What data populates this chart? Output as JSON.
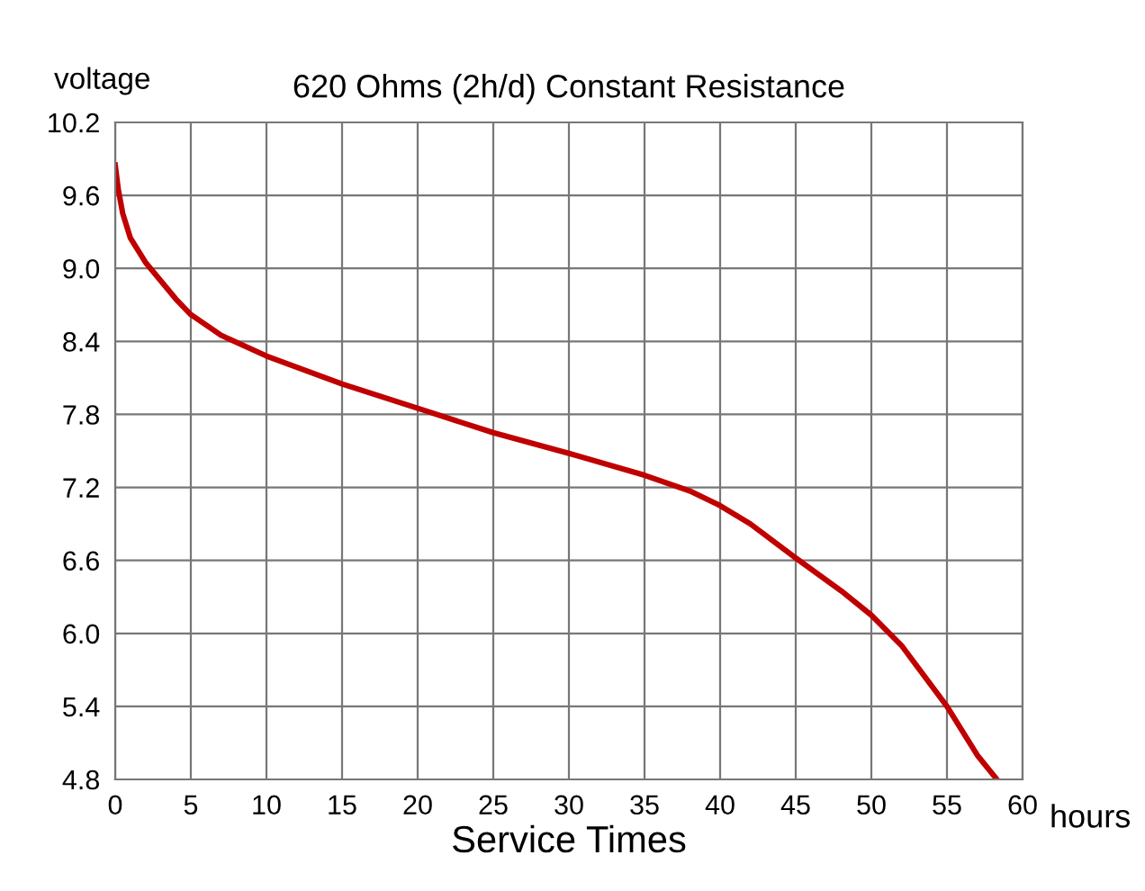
{
  "chart_data": {
    "type": "line",
    "title": "620 Ohms (2h/d) Constant Resistance",
    "xlabel": "Service Times",
    "ylabel": "voltage",
    "annotations": [
      "hours"
    ],
    "series": [
      {
        "color": "#c00000",
        "x": [
          0,
          0.2,
          0.5,
          1,
          1.5,
          2,
          3,
          4,
          5,
          7,
          10,
          15,
          20,
          25,
          30,
          35,
          38,
          40,
          42,
          45,
          48,
          50,
          52,
          55,
          57,
          58.3
        ],
        "values": [
          9.85,
          9.65,
          9.45,
          9.25,
          9.15,
          9.05,
          8.9,
          8.75,
          8.62,
          8.45,
          8.28,
          8.05,
          7.85,
          7.65,
          7.48,
          7.3,
          7.17,
          7.05,
          6.9,
          6.62,
          6.35,
          6.15,
          5.9,
          5.4,
          5.0,
          4.8
        ]
      }
    ],
    "xlim": [
      0,
      60
    ],
    "xticks": [
      0,
      5,
      10,
      15,
      20,
      25,
      30,
      35,
      40,
      45,
      50,
      55,
      60
    ],
    "ylim": [
      4.8,
      10.2
    ],
    "yticks": [
      {
        "value": 4.8,
        "label": "4.8"
      },
      {
        "value": 5.4,
        "label": "5.4"
      },
      {
        "value": 6.0,
        "label": "6.0"
      },
      {
        "value": 6.6,
        "label": "6.6"
      },
      {
        "value": 7.2,
        "label": "7.2"
      },
      {
        "value": 7.8,
        "label": "7.8"
      },
      {
        "value": 8.4,
        "label": "8.4"
      },
      {
        "value": 9.0,
        "label": "9.0"
      },
      {
        "value": 9.6,
        "label": "9.6"
      },
      {
        "value": 10.2,
        "label": "10.2"
      }
    ],
    "grid": true,
    "marker": "none",
    "line_style": "solid",
    "legend": false
  }
}
